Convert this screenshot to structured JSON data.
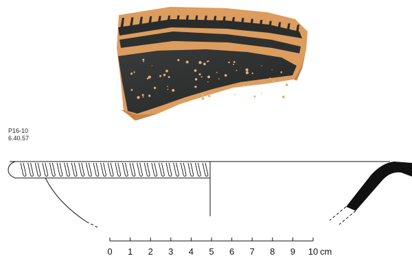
{
  "catalog": {
    "object_id": "P16-10",
    "inventory_number": "6.40.57"
  },
  "scale_bar": {
    "ticks": [
      "0",
      "1",
      "2",
      "3",
      "4",
      "5",
      "6",
      "7",
      "8",
      "9",
      "10"
    ],
    "unit": "cm"
  },
  "colors": {
    "clay": "#d99a5c",
    "clay_light": "#e8b27a",
    "glaze": "#2a2c2c",
    "line": "#111111"
  }
}
